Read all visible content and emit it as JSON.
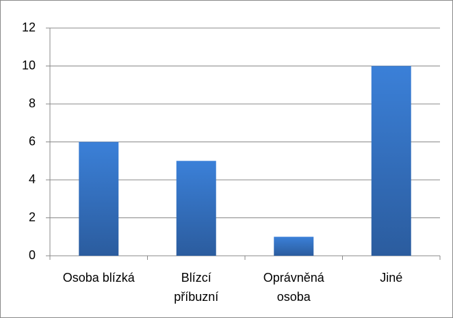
{
  "chart_data": {
    "type": "bar",
    "categories": [
      "Osoba blízká",
      "Blízcí příbuzní",
      "Oprávněná osoba",
      "Jiné"
    ],
    "values": [
      6,
      5,
      1,
      10
    ],
    "color": "#3a7bd0",
    "ylim": [
      0,
      12
    ],
    "yticks": [
      0,
      2,
      4,
      6,
      8,
      10,
      12
    ],
    "grid": true
  }
}
